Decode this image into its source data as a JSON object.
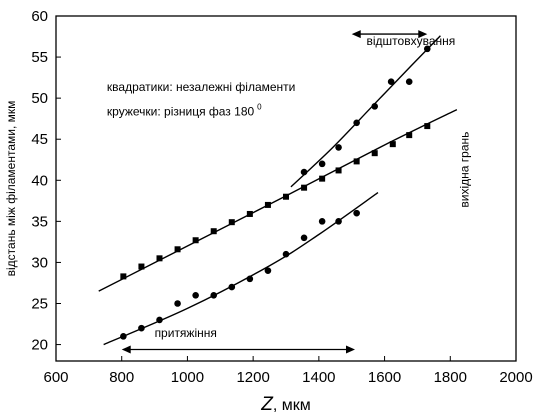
{
  "chart_data": {
    "type": "scatter",
    "xlabel": "Z",
    "xlabel_unit": ", мкм",
    "ylabel": "відстань між філаментами, мкм",
    "xlim": [
      600,
      2000
    ],
    "ylim": [
      18,
      60
    ],
    "xticks": [
      600,
      800,
      1000,
      1200,
      1400,
      1600,
      1800,
      2000
    ],
    "yticks": [
      20,
      25,
      30,
      35,
      40,
      45,
      50,
      55,
      60
    ],
    "legend_text": {
      "squares": "квадратики: незалежні філаменти",
      "circles": "кружечки: різниця фаз 180",
      "circles_superscript": "0"
    },
    "annotations": {
      "repulsion": "відштовхування",
      "attraction": "притяжіння",
      "exit_face": "вихідна грань"
    },
    "series": [
      {
        "marker": "square",
        "x": [
          805,
          860,
          915,
          970,
          1025,
          1080,
          1135,
          1190,
          1245,
          1300,
          1355,
          1410,
          1460,
          1515,
          1570,
          1625,
          1675,
          1730
        ],
        "y": [
          28.3,
          29.5,
          30.5,
          31.6,
          32.7,
          33.8,
          34.9,
          35.9,
          37.0,
          38.0,
          39.1,
          40.2,
          41.2,
          42.3,
          43.3,
          44.4,
          45.5,
          46.6
        ]
      },
      {
        "marker": "circle",
        "x": [
          805,
          860,
          915,
          970,
          1025,
          1080,
          1135,
          1190,
          1245,
          1300,
          1355,
          1410,
          1460,
          1515
        ],
        "y": [
          21.0,
          22.0,
          23.0,
          25.0,
          26.0,
          26.0,
          27.0,
          28.0,
          29.0,
          31.0,
          33.0,
          35.0,
          35.0,
          36.0
        ]
      },
      {
        "marker": "circle",
        "x": [
          1355,
          1410,
          1460,
          1515,
          1570,
          1620,
          1675,
          1730
        ],
        "y": [
          41.0,
          42.0,
          44.0,
          47.0,
          49.0,
          52.0,
          52.0,
          56.0
        ]
      }
    ],
    "fit_lines": [
      {
        "x": [
          730,
          1000,
          1300,
          1600,
          1820
        ],
        "y": [
          26.5,
          32.0,
          38.1,
          44.3,
          48.6
        ]
      },
      {
        "x": [
          745,
          1000,
          1250,
          1400,
          1580
        ],
        "y": [
          20.0,
          24.4,
          29.6,
          33.4,
          38.5
        ]
      },
      {
        "x": [
          1315,
          1440,
          1560,
          1680,
          1770
        ],
        "y": [
          39.2,
          43.9,
          48.9,
          53.9,
          57.6
        ]
      }
    ],
    "arrows": [
      {
        "name": "repulsion-arrow",
        "x": [
          1500,
          1730
        ],
        "y": 57.8
      },
      {
        "name": "attraction-arrow",
        "x": [
          800,
          1510
        ],
        "y": 19.4
      }
    ]
  }
}
